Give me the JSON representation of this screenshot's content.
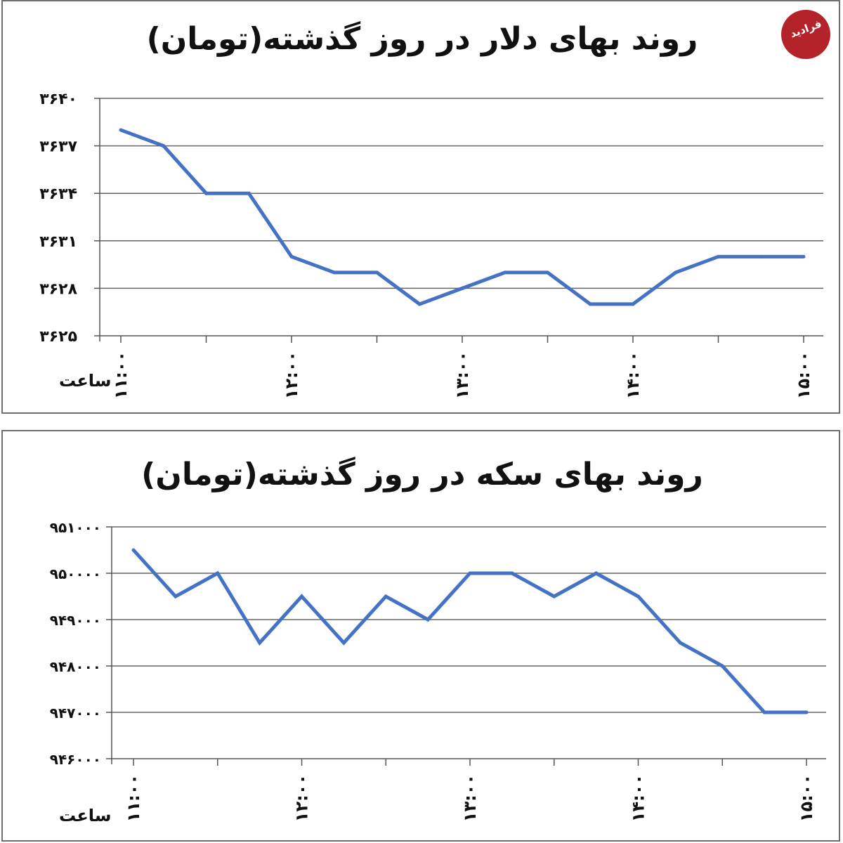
{
  "logo": {
    "text": "فرادید"
  },
  "chart_data": [
    {
      "type": "line",
      "title": "روند بهای دلار در روز گذشته(تومان)",
      "xlabel": "ساعت",
      "ylabel": "",
      "ylim": [
        3625,
        3640
      ],
      "yticks": [
        3640,
        3637,
        3634,
        3631,
        3628,
        3625
      ],
      "ytick_labels": [
        "۳۶۴۰",
        "۳۶۳۷",
        "۳۶۳۴",
        "۳۶۳۱",
        "۳۶۲۸",
        "۳۶۲۵"
      ],
      "xtick_labels": [
        "۱۱:۰۰",
        "۱۲:۰۰",
        "۱۳:۰۰",
        "۱۴:۰۰",
        "۱۵:۰۰"
      ],
      "grid": true,
      "color": "#4472c4",
      "series": [
        {
          "values": [
            3638,
            3637,
            3634,
            3634,
            3630,
            3629,
            3629,
            3627,
            3628,
            3629,
            3629,
            3627,
            3627,
            3629,
            3630,
            3630,
            3630
          ]
        }
      ]
    },
    {
      "type": "line",
      "title": "روند بهای سکه در روز گذشته(تومان)",
      "xlabel": "ساعت",
      "ylabel": "",
      "ylim": [
        946000,
        951000
      ],
      "yticks": [
        951000,
        950000,
        949000,
        948000,
        947000,
        946000
      ],
      "ytick_labels": [
        "۹۵۱۰۰۰",
        "۹۵۰۰۰۰",
        "۹۴۹۰۰۰",
        "۹۴۸۰۰۰",
        "۹۴۷۰۰۰",
        "۹۴۶۰۰۰"
      ],
      "xtick_labels": [
        "۱۱:۰۰",
        "۱۲:۰۰",
        "۱۳:۰۰",
        "۱۴:۰۰",
        "۱۵:۰۰"
      ],
      "grid": true,
      "color": "#4472c4",
      "series": [
        {
          "values": [
            950500,
            949500,
            950000,
            948500,
            949500,
            948500,
            949500,
            949000,
            950000,
            950000,
            949500,
            950000,
            949500,
            948500,
            948000,
            947000,
            947000
          ]
        }
      ]
    }
  ]
}
